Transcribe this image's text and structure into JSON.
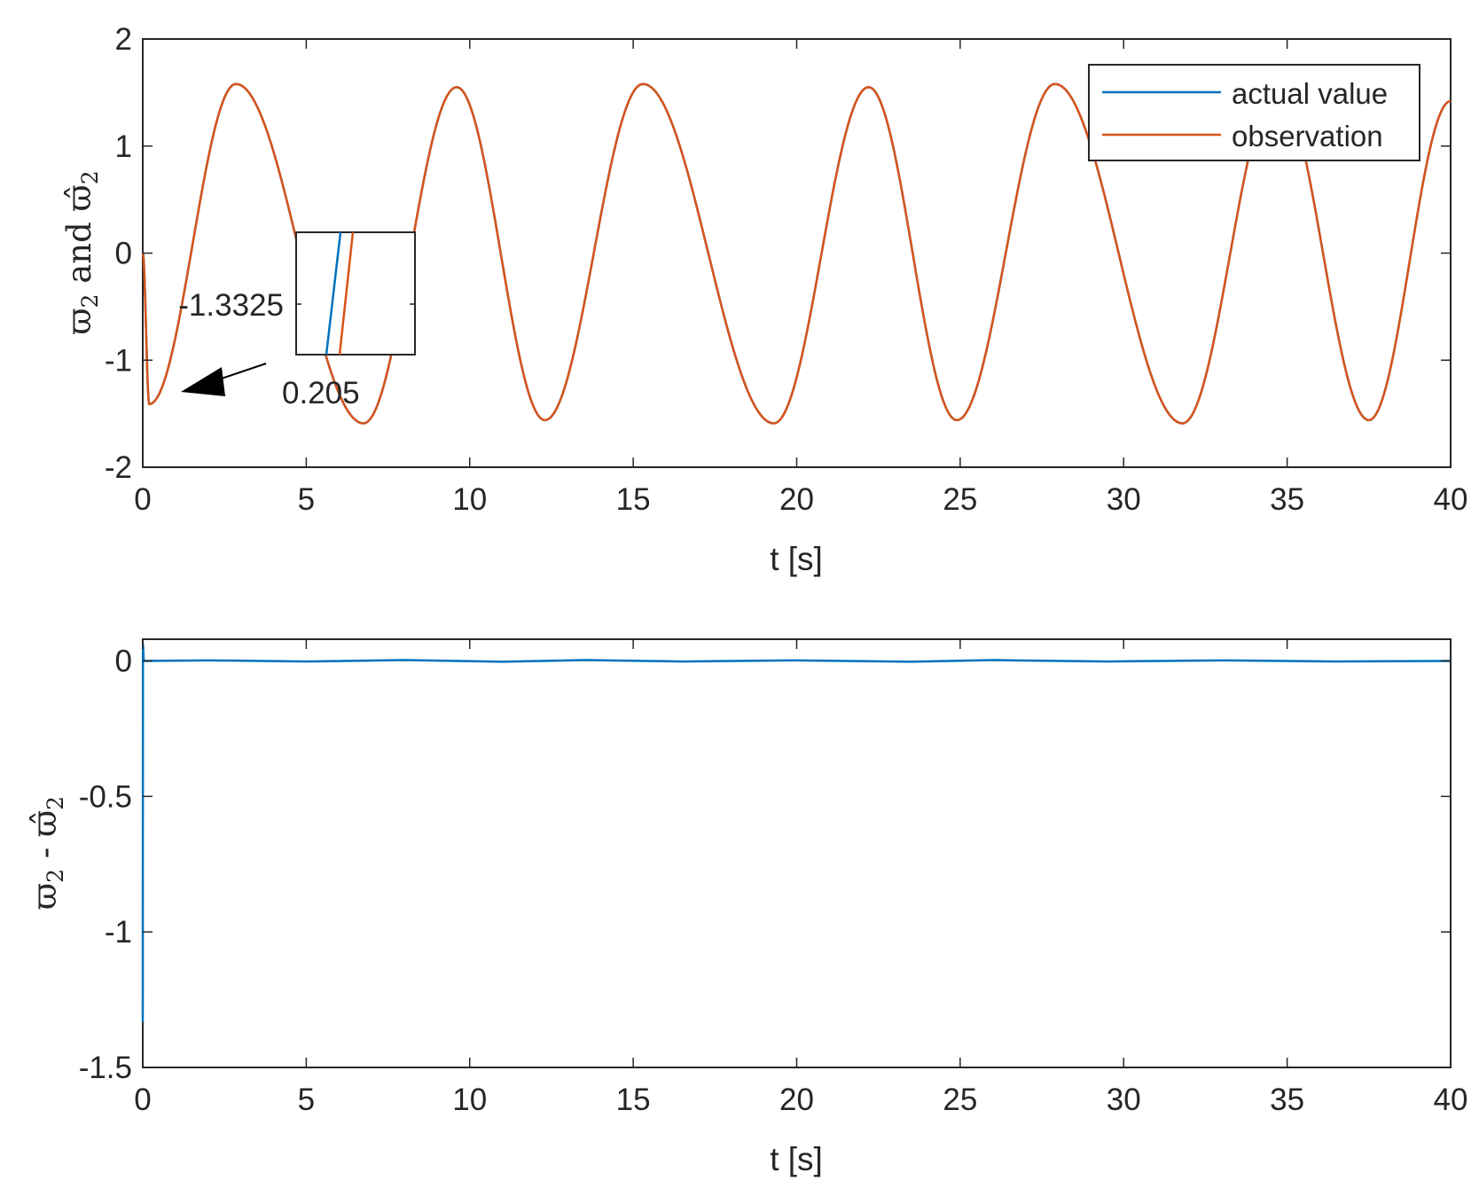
{
  "chart_data": [
    {
      "type": "line",
      "xlabel": "t [s]",
      "ylabel": {
        "sym": "ϖ",
        "sub": "2",
        "mid": " and ",
        "sym2": "ϖ̂",
        "sub2": "2"
      },
      "xlim": [
        0,
        40
      ],
      "ylim": [
        -2,
        2
      ],
      "xticks": [
        0,
        5,
        10,
        15,
        20,
        25,
        30,
        35,
        40
      ],
      "yticks": [
        -2,
        -1,
        0,
        1,
        2
      ],
      "grid": false,
      "legend_position": "top-right",
      "series": [
        {
          "name": "actual value",
          "color": "#0072BD"
        },
        {
          "name": "observation",
          "color": "#D95319"
        }
      ],
      "signal_peaks": [
        {
          "t": 0.0,
          "y": 0.0
        },
        {
          "t": 0.2,
          "y": -1.41
        },
        {
          "t": 2.85,
          "y": 1.58
        },
        {
          "t": 6.75,
          "y": -1.59
        },
        {
          "t": 9.6,
          "y": 1.55
        },
        {
          "t": 12.3,
          "y": -1.56
        },
        {
          "t": 15.3,
          "y": 1.58
        },
        {
          "t": 19.3,
          "y": -1.59
        },
        {
          "t": 22.2,
          "y": 1.55
        },
        {
          "t": 24.9,
          "y": -1.56
        },
        {
          "t": 27.9,
          "y": 1.58
        },
        {
          "t": 31.8,
          "y": -1.59
        },
        {
          "t": 34.7,
          "y": 1.55
        },
        {
          "t": 37.5,
          "y": -1.56
        },
        {
          "t": 40.0,
          "y": 1.42
        }
      ],
      "annotation": {
        "y_label": "-1.3325",
        "x_label": "0.205"
      }
    },
    {
      "type": "line",
      "xlabel": "t [s]",
      "ylabel": {
        "sym": "ϖ",
        "sub": "2",
        "mid": " - ",
        "sym2": "ϖ̂",
        "sub2": "2"
      },
      "xlim": [
        0,
        40
      ],
      "ylim": [
        -1.5,
        0.08
      ],
      "xticks": [
        0,
        5,
        10,
        15,
        20,
        25,
        30,
        35,
        40
      ],
      "yticks": [
        -1.5,
        -1,
        -0.5,
        0
      ],
      "ytick_labels": [
        "-1.5",
        "-1",
        "-0.5",
        "0"
      ],
      "grid": false,
      "series": [
        {
          "color": "#0072BD",
          "points": [
            [
              0,
              -1.3325
            ],
            [
              0.003,
              -0.6
            ],
            [
              0.006,
              0.06
            ],
            [
              0.03,
              0.0
            ],
            [
              2,
              0.002
            ],
            [
              5,
              -0.002
            ],
            [
              8,
              0.003
            ],
            [
              11,
              -0.003
            ],
            [
              13.5,
              0.003
            ],
            [
              16.5,
              -0.002
            ],
            [
              20,
              0.002
            ],
            [
              23.5,
              -0.003
            ],
            [
              26,
              0.003
            ],
            [
              29.5,
              -0.002
            ],
            [
              33,
              0.002
            ],
            [
              36.5,
              -0.002
            ],
            [
              40,
              0.0
            ]
          ]
        }
      ]
    }
  ]
}
